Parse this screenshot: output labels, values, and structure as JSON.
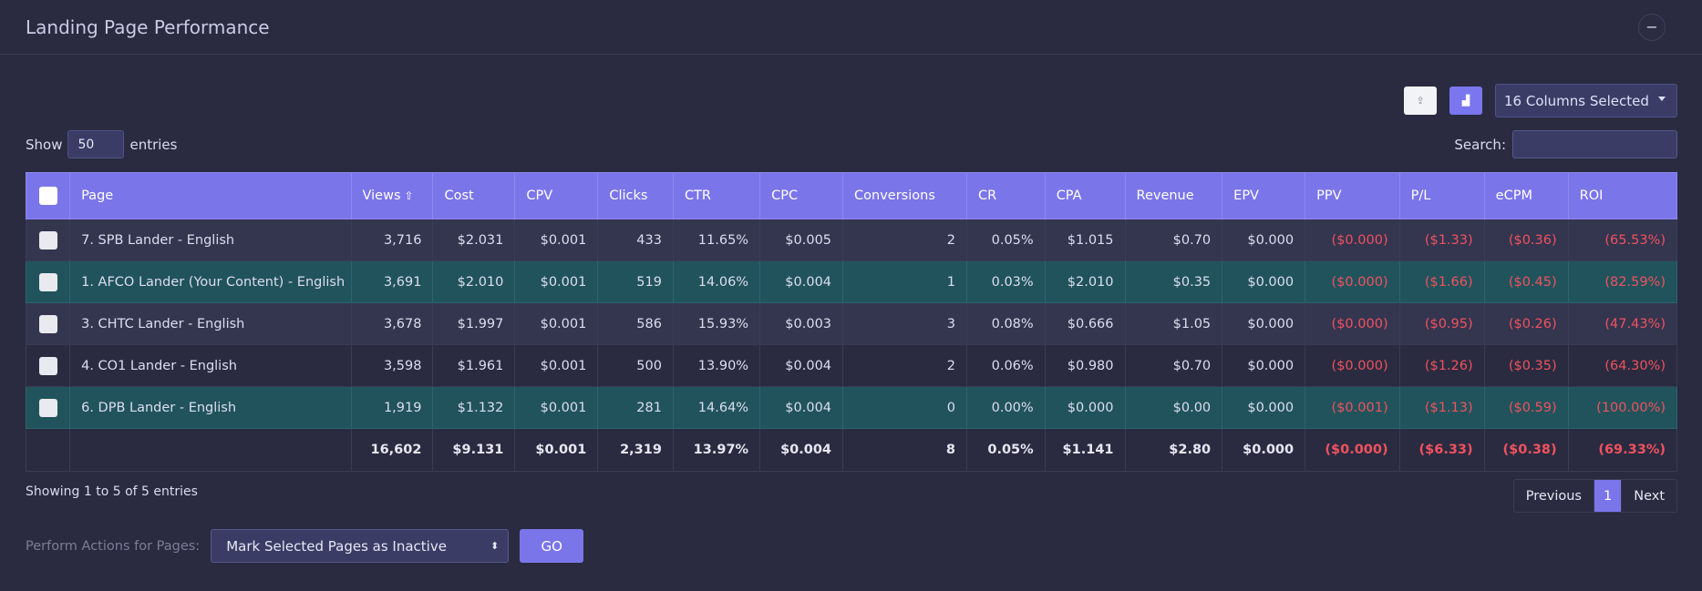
{
  "panel": {
    "title": "Landing Page Performance",
    "collapse_icon": "−"
  },
  "toolbar": {
    "export_icon": "⇪",
    "chart_icon": "▟",
    "columns_label": "16 Columns Selected"
  },
  "show_entries": {
    "prefix": "Show",
    "value": "50",
    "suffix": "entries"
  },
  "search": {
    "label": "Search:",
    "value": ""
  },
  "table": {
    "headers": [
      "Page",
      "Views",
      "Cost",
      "CPV",
      "Clicks",
      "CTR",
      "CPC",
      "Conversions",
      "CR",
      "CPA",
      "Revenue",
      "EPV",
      "PPV",
      "P/L",
      "eCPM",
      "ROI"
    ],
    "sort_icon": "⇧",
    "rows": [
      [
        "7. SPB Lander - English",
        "3,716",
        "$2.031",
        "$0.001",
        "433",
        "11.65%",
        "$0.005",
        "2",
        "0.05%",
        "$1.015",
        "$0.70",
        "$0.000",
        "($0.000)",
        "($1.33)",
        "($0.36)",
        "(65.53%)"
      ],
      [
        "1. AFCO Lander (Your Content) - English",
        "3,691",
        "$2.010",
        "$0.001",
        "519",
        "14.06%",
        "$0.004",
        "1",
        "0.03%",
        "$2.010",
        "$0.35",
        "$0.000",
        "($0.000)",
        "($1.66)",
        "($0.45)",
        "(82.59%)"
      ],
      [
        "3. CHTC Lander - English",
        "3,678",
        "$1.997",
        "$0.001",
        "586",
        "15.93%",
        "$0.003",
        "3",
        "0.08%",
        "$0.666",
        "$1.05",
        "$0.000",
        "($0.000)",
        "($0.95)",
        "($0.26)",
        "(47.43%)"
      ],
      [
        "4. CO1 Lander - English",
        "3,598",
        "$1.961",
        "$0.001",
        "500",
        "13.90%",
        "$0.004",
        "2",
        "0.06%",
        "$0.980",
        "$0.70",
        "$0.000",
        "($0.000)",
        "($1.26)",
        "($0.35)",
        "(64.30%)"
      ],
      [
        "6. DPB Lander - English",
        "1,919",
        "$1.132",
        "$0.001",
        "281",
        "14.64%",
        "$0.004",
        "0",
        "0.00%",
        "$0.000",
        "$0.00",
        "$0.000",
        "($0.001)",
        "($1.13)",
        "($0.59)",
        "(100.00%)"
      ]
    ],
    "totals": [
      "",
      "16,602",
      "$9.131",
      "$0.001",
      "2,319",
      "13.97%",
      "$0.004",
      "8",
      "0.05%",
      "$1.141",
      "$2.80",
      "$0.000",
      "($0.000)",
      "($6.33)",
      "($0.38)",
      "(69.33%)"
    ]
  },
  "info": "Showing 1 to 5 of 5 entries",
  "pagination": {
    "previous": "Previous",
    "page": "1",
    "next": "Next"
  },
  "actions": {
    "label": "Perform Actions for Pages:",
    "selected": "Mark Selected Pages as Inactive",
    "go": "GO"
  }
}
